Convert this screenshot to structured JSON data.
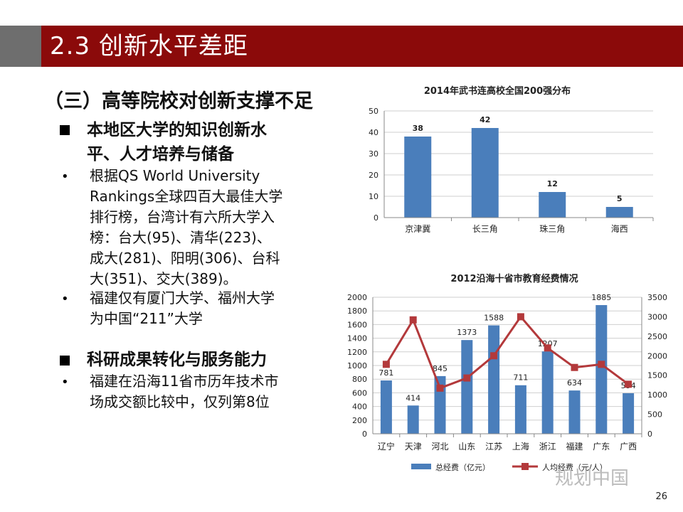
{
  "slide": {
    "title": "2.3 创新水平差距",
    "section_heading": "（三）高等院校对创新支撑不足",
    "page_number": "26",
    "watermark": "规划中国"
  },
  "bullets": {
    "l1a_line1": "本地区大学的知识创新水",
    "l1a_line2": "平、人才培养与储备",
    "l2a_lines": [
      "根据QS World University",
      "Rankings全球四百大最佳大学",
      "排行榜，台湾计有六所大学入",
      "榜：台大(95)、清华(223)、",
      "成大(281)、阳明(306)、台科",
      "大(351)、交大(389)。"
    ],
    "l2b_lines": [
      "福建仅有厦门大学、福州大学",
      "为中国“211”大学"
    ],
    "l1b": "科研成果转化与服务能力",
    "l2c_lines": [
      "福建在沿海11省市历年技术市",
      "场成交额比较中，仅列第8位"
    ],
    "dot": "•"
  },
  "colors": {
    "title_bar": "#8b0a0a",
    "bar": "#4a7ebb",
    "line": "#b3393b"
  },
  "chart_data": [
    {
      "type": "bar",
      "title": "2014年武书连高校全国200强分布",
      "categories": [
        "京津冀",
        "长三角",
        "珠三角",
        "海西"
      ],
      "values": [
        38,
        42,
        12,
        5
      ],
      "ylim": [
        0,
        50
      ],
      "yticks": [
        0,
        10,
        20,
        30,
        40,
        50
      ],
      "grid": true
    },
    {
      "type": "bar",
      "title": "2012沿海十省市教育经费情况",
      "categories": [
        "辽宁",
        "天津",
        "河北",
        "山东",
        "江苏",
        "上海",
        "浙江",
        "福建",
        "广东",
        "广西"
      ],
      "series": [
        {
          "name": "总经费（亿元）",
          "type": "bar",
          "axis": "left",
          "values": [
            781,
            414,
            845,
            1373,
            1588,
            711,
            1207,
            634,
            1885,
            594
          ]
        },
        {
          "name": "人均经费（元/人）",
          "type": "line",
          "axis": "right",
          "values": [
            1780,
            2920,
            1170,
            1430,
            2000,
            3000,
            2200,
            1700,
            1780,
            1270
          ]
        }
      ],
      "ylim_left": [
        0,
        2000
      ],
      "yticks_left": [
        0,
        200,
        400,
        600,
        800,
        1000,
        1200,
        1400,
        1600,
        1800,
        2000
      ],
      "ylim_right": [
        0,
        3500
      ],
      "yticks_right": [
        0,
        500,
        1000,
        1500,
        2000,
        2500,
        3000,
        3500
      ],
      "legend_position": "bottom",
      "grid": true
    }
  ]
}
